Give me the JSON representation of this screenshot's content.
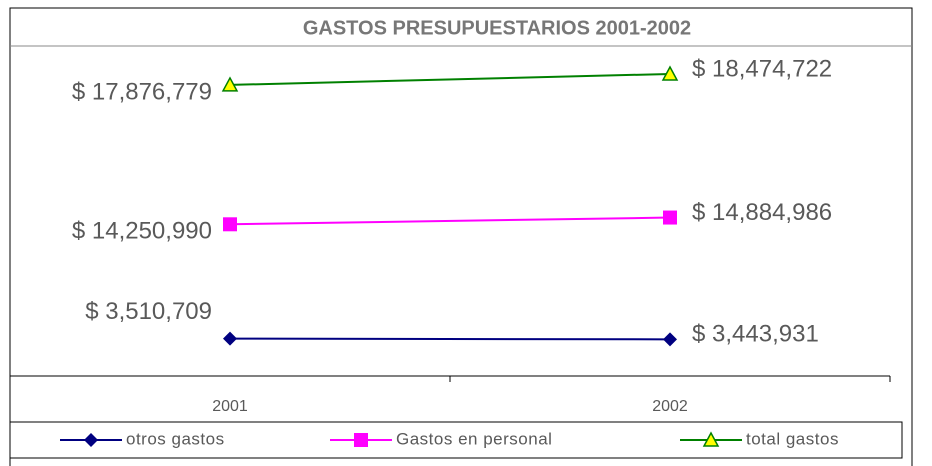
{
  "chart_data": {
    "type": "line",
    "title": "GASTOS PRESUPUESTARIOS 2001-2002",
    "categories": [
      "2001",
      "2002"
    ],
    "ylim": [
      0,
      31000000
    ],
    "y2lim": [
      2000000,
      20000000
    ],
    "series": [
      {
        "name": "otros gastos",
        "color": "#000080",
        "marker": "diamond",
        "values": [
          3510709,
          3443931
        ],
        "value_labels": [
          "$ 3,510,709",
          "$ 3,443,931"
        ]
      },
      {
        "name": "Gastos en personal",
        "color": "#ff00ff",
        "marker": "square",
        "values": [
          14250990,
          14884986
        ],
        "value_labels": [
          "$ 14,250,990",
          "$ 14,884,986"
        ]
      },
      {
        "name": "total gastos",
        "color": "#008000",
        "marker": "triangle",
        "axis": "y2",
        "values": [
          17876779,
          18474722
        ],
        "value_labels": [
          "$ 17,876,779",
          "$ 18,474,722"
        ]
      }
    ],
    "legend": "bottom"
  }
}
